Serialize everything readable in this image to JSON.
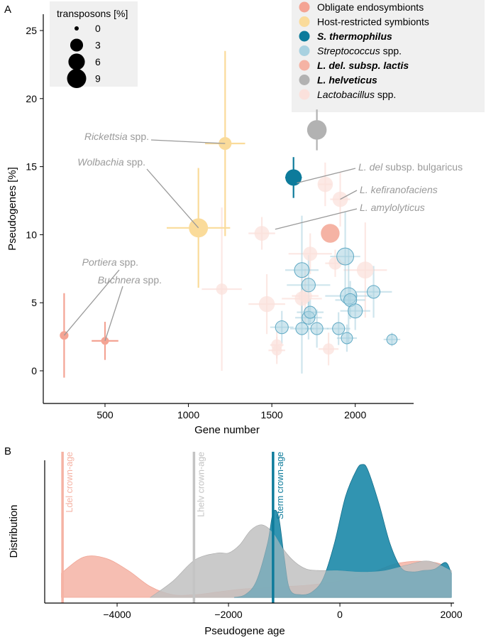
{
  "chart_data": [
    {
      "panel": "A",
      "type": "scatter",
      "xlabel": "Gene number",
      "ylabel": "Pseudogenes [%]",
      "xlim": [
        130,
        2350
      ],
      "ylim": [
        -2.4,
        26.2
      ],
      "xticks": [
        500,
        1000,
        1500,
        2000
      ],
      "yticks": [
        0,
        5,
        10,
        15,
        20,
        25
      ],
      "size_legend": {
        "title": "transposons [%]",
        "values": [
          0,
          3,
          6,
          9
        ]
      },
      "legend": [
        {
          "key": "obligate",
          "label": "Obligate endosymbionts",
          "color": "#f4a494",
          "bold": false
        },
        {
          "key": "host",
          "label": "Host-restricted symbionts",
          "color": "#fadb9a",
          "bold": false
        },
        {
          "key": "sthermo",
          "label": "S. thermophilus",
          "color": "#0d7b9b",
          "bold": true
        },
        {
          "key": "strep",
          "label": "Streptococcus spp.",
          "italic_part": "Streptococcus",
          "plain_part": " spp.",
          "color": "#a8d1e0",
          "bold": false
        },
        {
          "key": "ldel",
          "label": "L. del. subsp. lactis",
          "color": "#f5b3a4",
          "bold": true
        },
        {
          "key": "lhelv",
          "label": "L. helveticus",
          "color": "#b2b2b2",
          "bold": true
        },
        {
          "key": "lacto",
          "label": "Lactobacillus spp.",
          "italic_part": "Lactobacillus",
          "plain_part": " spp.",
          "color": "#fbe1dc",
          "bold": false
        }
      ],
      "series": [
        {
          "name": "Obligate endosymbionts",
          "points": [
            {
              "x": 255,
              "y": 2.6,
              "xerr": 0,
              "yerr": 3.1,
              "t": 0.8
            },
            {
              "x": 500,
              "y": 2.2,
              "xerr": 80,
              "yerr": 1.4,
              "t": 0.5
            }
          ]
        },
        {
          "name": "Host-restricted symbionts",
          "points": [
            {
              "x": 1220,
              "y": 16.7,
              "xerr": 120,
              "yerr": 6.8,
              "t": 3.0
            },
            {
              "x": 1060,
              "y": 10.5,
              "xerr": 190,
              "yerr": 4.4,
              "t": 9.0
            }
          ]
        },
        {
          "name": "S. thermophilus",
          "points": [
            {
              "x": 1630,
              "y": 14.2,
              "xerr": 50,
              "yerr": 1.5,
              "t": 6.0
            }
          ]
        },
        {
          "name": "L. del. subsp. lactis",
          "points": [
            {
              "x": 1850,
              "y": 10.1,
              "xerr": 0,
              "yerr": 0,
              "t": 8.5
            }
          ]
        },
        {
          "name": "L. helveticus",
          "points": [
            {
              "x": 1770,
              "y": 17.7,
              "xerr": 0,
              "yerr": 1.5,
              "t": 9.5
            }
          ]
        },
        {
          "name": "Streptococcus spp.",
          "points": [
            {
              "x": 1680,
              "y": 7.4,
              "xerr": 100,
              "yerr": 4.0,
              "t": 4.5
            },
            {
              "x": 1720,
              "y": 6.3,
              "xerr": 130,
              "yerr": 2.2,
              "t": 3.5
            },
            {
              "x": 1940,
              "y": 8.4,
              "xerr": 90,
              "yerr": 3.3,
              "t": 6.5
            },
            {
              "x": 1960,
              "y": 5.5,
              "xerr": 140,
              "yerr": 3.5,
              "t": 6.0
            },
            {
              "x": 1970,
              "y": 5.2,
              "xerr": 90,
              "yerr": 1.4,
              "t": 3.0
            },
            {
              "x": 2000,
              "y": 4.4,
              "xerr": 90,
              "yerr": 1.4,
              "t": 4.0
            },
            {
              "x": 2110,
              "y": 5.8,
              "xerr": 110,
              "yerr": 1.9,
              "t": 3.0
            },
            {
              "x": 1720,
              "y": 3.9,
              "xerr": 80,
              "yerr": 1.6,
              "t": 3.0
            },
            {
              "x": 1770,
              "y": 3.1,
              "xerr": 70,
              "yerr": 1.4,
              "t": 2.5
            },
            {
              "x": 1680,
              "y": 3.1,
              "xerr": 70,
              "yerr": 3.3,
              "t": 2.5
            },
            {
              "x": 1560,
              "y": 3.2,
              "xerr": 70,
              "yerr": 1.2,
              "t": 3.0
            },
            {
              "x": 1730,
              "y": 4.3,
              "xerr": 80,
              "yerr": 1.0,
              "t": 2.5
            },
            {
              "x": 1900,
              "y": 3.1,
              "xerr": 70,
              "yerr": 1.2,
              "t": 2.5
            },
            {
              "x": 1950,
              "y": 2.4,
              "xerr": 60,
              "yerr": 1.0,
              "t": 2.0
            },
            {
              "x": 2220,
              "y": 2.3,
              "xerr": 50,
              "yerr": 0.5,
              "t": 1.5
            }
          ]
        },
        {
          "name": "Lactobacillus spp.",
          "points": [
            {
              "x": 1440,
              "y": 10.1,
              "xerr": 80,
              "yerr": 1.2,
              "t": 4.5
            },
            {
              "x": 1910,
              "y": 12.6,
              "xerr": 60,
              "yerr": 2.0,
              "t": 5.0
            },
            {
              "x": 1820,
              "y": 13.7,
              "xerr": 40,
              "yerr": 1.6,
              "t": 5.0
            },
            {
              "x": 1730,
              "y": 8.6,
              "xerr": 130,
              "yerr": 1.5,
              "t": 4.0
            },
            {
              "x": 2060,
              "y": 7.4,
              "xerr": 130,
              "yerr": 3.5,
              "t": 6.5
            },
            {
              "x": 1680,
              "y": 5.3,
              "xerr": 120,
              "yerr": 1.7,
              "t": 4.0
            },
            {
              "x": 1700,
              "y": 5.5,
              "xerr": 80,
              "yerr": 2.0,
              "t": 3.5
            },
            {
              "x": 1470,
              "y": 4.9,
              "xerr": 110,
              "yerr": 2.2,
              "t": 5.5
            },
            {
              "x": 1200,
              "y": 6.0,
              "xerr": 120,
              "yerr": 6.0,
              "t": 2.0
            },
            {
              "x": 1530,
              "y": 1.9,
              "xerr": 40,
              "yerr": 1.0,
              "t": 2.0
            },
            {
              "x": 1530,
              "y": 1.5,
              "xerr": 50,
              "yerr": 1.0,
              "t": 1.5
            },
            {
              "x": 1840,
              "y": 1.6,
              "xerr": 60,
              "yerr": 1.2,
              "t": 2.0
            },
            {
              "x": 1880,
              "y": 7.9,
              "xerr": 60,
              "yerr": 1.0,
              "t": 3.0
            }
          ]
        }
      ],
      "annotations": [
        {
          "italic": "Rickettsia",
          "plain": " spp.",
          "x": 1220,
          "y": 16.7
        },
        {
          "italic": "Wolbachia",
          "plain": " spp.",
          "x": 1060,
          "y": 10.5
        },
        {
          "italic": "Portiera",
          "plain": " spp.",
          "x": 255,
          "y": 2.6
        },
        {
          "italic": "Buchnera",
          "plain": " spp.",
          "x": 500,
          "y": 2.2
        },
        {
          "italic": "L. del",
          "plain": " subsp. bulgaricus",
          "x": 1650,
          "y": 13.8
        },
        {
          "italic": "L. kefiranofaciens",
          "plain": "",
          "x": 1910,
          "y": 12.6
        },
        {
          "italic": "L. amylolyticus",
          "plain": "",
          "x": 1520,
          "y": 10.4
        }
      ]
    },
    {
      "panel": "B",
      "type": "area",
      "xlabel": "Pseudogene age",
      "ylabel": "Distribution",
      "xlim": [
        -5300,
        2050
      ],
      "xticks": [
        -4000,
        -2000,
        0,
        2000
      ],
      "series": [
        {
          "name": "L. del. subsp. lactis",
          "color": "#f5b3a4",
          "x": [
            -5000,
            -4600,
            -4200,
            -3800,
            -3400,
            -3000,
            -2600,
            -2200,
            -1800,
            -1400,
            -1000,
            -600,
            -200,
            200,
            600,
            1000,
            1400,
            1800,
            2000
          ],
          "values": [
            0.18,
            0.3,
            0.29,
            0.2,
            0.08,
            0.02,
            0.02,
            0.04,
            0.06,
            0.07,
            0.08,
            0.09,
            0.11,
            0.14,
            0.19,
            0.25,
            0.27,
            0.25,
            0.18
          ]
        },
        {
          "name": "L. helveticus",
          "color": "#b2b2b2",
          "x": [
            -3400,
            -3000,
            -2600,
            -2200,
            -2000,
            -1800,
            -1600,
            -1400,
            -1200,
            -1000,
            -800,
            -600,
            -400,
            -200,
            0,
            400,
            800,
            1200,
            1600,
            2000
          ],
          "values": [
            0.0,
            0.12,
            0.28,
            0.33,
            0.33,
            0.39,
            0.5,
            0.54,
            0.48,
            0.35,
            0.26,
            0.21,
            0.2,
            0.2,
            0.2,
            0.19,
            0.2,
            0.24,
            0.27,
            0.2
          ]
        },
        {
          "name": "S. thermophilus",
          "color": "#1b88a8",
          "x": [
            -1900,
            -1700,
            -1500,
            -1300,
            -1200,
            -1100,
            -1000,
            -900,
            -700,
            -500,
            -300,
            -100,
            100,
            300,
            400,
            500,
            700,
            900,
            1100,
            1300,
            1500,
            1700,
            1900,
            2000
          ],
          "values": [
            0.0,
            0.02,
            0.12,
            0.4,
            0.63,
            0.6,
            0.3,
            0.06,
            0.02,
            0.04,
            0.14,
            0.4,
            0.75,
            0.95,
            0.99,
            0.95,
            0.7,
            0.4,
            0.22,
            0.19,
            0.2,
            0.21,
            0.26,
            0.18
          ]
        }
      ],
      "vlines": [
        {
          "label": "Ldel crown-age",
          "x": -4980,
          "color": "#f5b3a4"
        },
        {
          "label": "Lhelv crown-age",
          "x": -2620,
          "color": "#c4c4c4"
        },
        {
          "label": "Sterm crown-age",
          "x": -1200,
          "color": "#0d7b9b"
        }
      ]
    }
  ],
  "panel_labels": {
    "a": "A",
    "b": "B"
  }
}
